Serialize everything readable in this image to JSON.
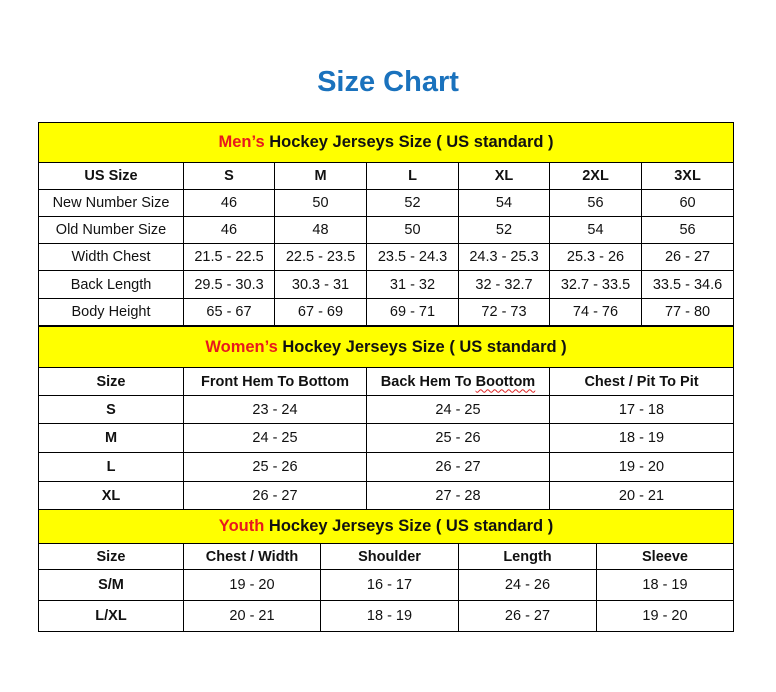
{
  "title": "Size Chart",
  "colors": {
    "title": "#1a72bd",
    "header_bg": "#ffff00",
    "accent_text": "#e8191d"
  },
  "sections": [
    {
      "accent": "Men’s",
      "heading": " Hockey Jerseys Size ( US standard )",
      "columns": [
        "US Size",
        "S",
        "M",
        "L",
        "XL",
        "2XL",
        "3XL"
      ],
      "rows": [
        [
          "New Number Size",
          "46",
          "50",
          "52",
          "54",
          "56",
          "60"
        ],
        [
          "Old Number Size",
          "46",
          "48",
          "50",
          "52",
          "54",
          "56"
        ],
        [
          "Width Chest",
          "21.5 - 22.5",
          "22.5 - 23.5",
          "23.5 - 24.3",
          "24.3 - 25.3",
          "25.3 - 26",
          "26 - 27"
        ],
        [
          "Back Length",
          "29.5 - 30.3",
          "30.3 - 31",
          "31 - 32",
          "32 - 32.7",
          "32.7 - 33.5",
          "33.5 - 34.6"
        ],
        [
          "Body Height",
          "65 - 67",
          "67 - 69",
          "69 - 71",
          "72 - 73",
          "74 - 76",
          "77 - 80"
        ]
      ]
    },
    {
      "accent": "Women’s",
      "heading": " Hockey Jerseys Size ( US standard )",
      "columns": [
        "Size",
        "Front Hem To Bottom",
        "Back Hem To Boottom",
        "Chest / Pit To Pit"
      ],
      "rows": [
        [
          "S",
          "23 - 24",
          "24 - 25",
          "17 - 18"
        ],
        [
          "M",
          "24 - 25",
          "25 - 26",
          "18 - 19"
        ],
        [
          "L",
          "25 - 26",
          "26 - 27",
          "19 - 20"
        ],
        [
          "XL",
          "26 - 27",
          "27 - 28",
          "20 - 21"
        ]
      ]
    },
    {
      "accent": "Youth",
      "heading": " Hockey Jerseys Size ( US standard )",
      "columns": [
        "Size",
        "Chest / Width",
        "Shoulder",
        "Length",
        "Sleeve"
      ],
      "rows": [
        [
          "S/M",
          "19 - 20",
          "16 - 17",
          "24 - 26",
          "18 - 19"
        ],
        [
          "L/XL",
          "20 - 21",
          "18 - 19",
          "26 - 27",
          "19 - 20"
        ]
      ]
    }
  ]
}
